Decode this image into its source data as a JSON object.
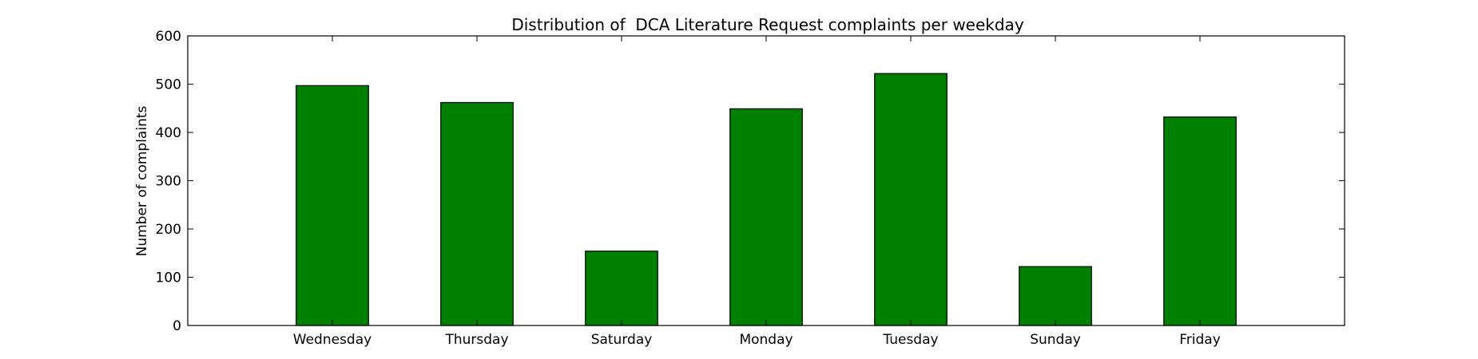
{
  "chart_data": {
    "type": "bar",
    "title": "Distribution of  DCA Literature Request complaints per weekday",
    "xlabel": "",
    "ylabel": "Number of complaints",
    "categories": [
      "Wednesday",
      "Thursday",
      "Saturday",
      "Monday",
      "Tuesday",
      "Sunday",
      "Friday"
    ],
    "values": [
      497,
      462,
      154,
      449,
      522,
      122,
      432
    ],
    "ylim": [
      0,
      600
    ],
    "yticks": [
      0,
      100,
      200,
      300,
      400,
      500,
      600
    ],
    "grid": false,
    "legend": "none",
    "bar_color": "#008000",
    "edge_color": "#000000"
  }
}
